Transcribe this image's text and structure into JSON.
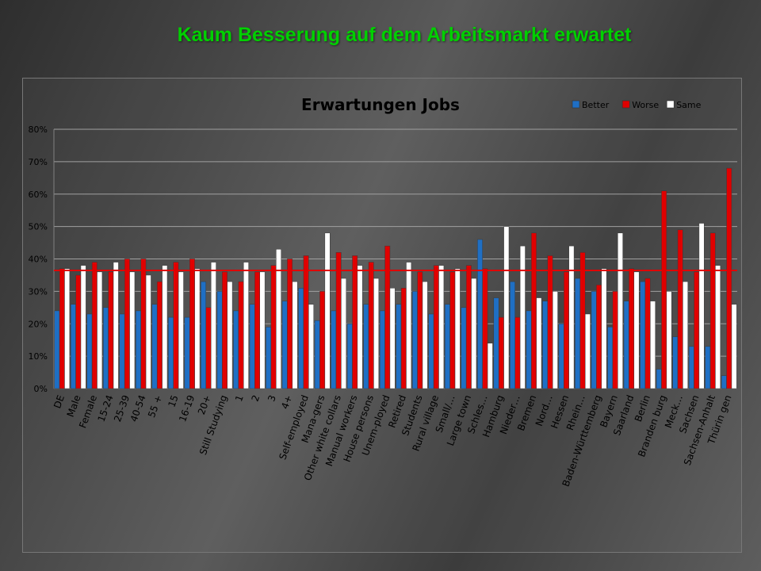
{
  "slide": {
    "title": "Kaum Besserung auf dem Arbeitsmarkt erwartet"
  },
  "colors": {
    "title": "#00d000",
    "better": "#1f6fc4",
    "worse": "#e00000",
    "same": "#ffffff",
    "reference_line": "#e00000"
  },
  "chart_data": {
    "type": "bar",
    "title": "Erwartungen Jobs",
    "xlabel": "",
    "ylabel": "",
    "ylim": [
      0,
      0.8
    ],
    "yticks": [
      "0%",
      "10%",
      "20%",
      "30%",
      "40%",
      "50%",
      "60%",
      "70%",
      "80%"
    ],
    "grid": true,
    "legend": "top-right",
    "reference_line": 0.365,
    "categories": [
      "DE",
      "Male",
      "Female",
      "15-24",
      "25-39",
      "40-54",
      "55 +",
      "15",
      "16-19",
      "20+",
      "Still Studying",
      "1",
      "2",
      "3",
      "4+",
      "Self-employed",
      "Mana-gers",
      "Other white collars",
      "Manual workers",
      "House persons",
      "Unem-ployed",
      "Retired",
      "Students",
      "Rural village",
      "Small/…",
      "Large town",
      "Schles…",
      "Hamburg",
      "Nieder…",
      "Bremen",
      "Nord…",
      "Hessen",
      "Rhein…",
      "Baden-Württemberg",
      "Bayern",
      "Saarland",
      "Berlin",
      "Branden burg",
      "Meck…",
      "Sachsen",
      "Sachsen-Anhalt",
      "Thürin gen"
    ],
    "series": [
      {
        "name": "Better",
        "values": [
          0.24,
          0.26,
          0.23,
          0.25,
          0.23,
          0.24,
          0.26,
          0.22,
          0.22,
          0.33,
          0.3,
          0.24,
          0.26,
          0.19,
          0.27,
          0.31,
          0.21,
          0.24,
          0.2,
          0.26,
          0.24,
          0.26,
          0.3,
          0.23,
          0.26,
          0.25,
          0.46,
          0.28,
          0.33,
          0.24,
          0.27,
          0.2,
          0.34,
          0.3,
          0.19,
          0.27,
          0.33,
          0.06,
          0.16,
          0.13,
          0.13,
          0.04
        ]
      },
      {
        "name": "Worse",
        "values": [
          0.37,
          0.35,
          0.39,
          0.36,
          0.4,
          0.4,
          0.33,
          0.39,
          0.4,
          0.25,
          0.36,
          0.33,
          0.36,
          0.38,
          0.4,
          0.41,
          0.3,
          0.42,
          0.41,
          0.39,
          0.44,
          0.31,
          0.36,
          0.38,
          0.36,
          0.38,
          0.37,
          0.22,
          0.22,
          0.48,
          0.41,
          0.36,
          0.42,
          0.32,
          0.3,
          0.37,
          0.34,
          0.61,
          0.49,
          0.36,
          0.48,
          0.68
        ]
      },
      {
        "name": "Same",
        "values": [
          0.37,
          0.38,
          0.36,
          0.39,
          0.36,
          0.35,
          0.38,
          0.36,
          0.37,
          0.39,
          0.33,
          0.39,
          0.36,
          0.43,
          0.33,
          0.26,
          0.48,
          0.34,
          0.38,
          0.34,
          0.31,
          0.39,
          0.33,
          0.38,
          0.37,
          0.34,
          0.14,
          0.5,
          0.44,
          0.28,
          0.3,
          0.44,
          0.23,
          0.37,
          0.48,
          0.36,
          0.27,
          0.3,
          0.33,
          0.51,
          0.38,
          0.26
        ]
      }
    ]
  }
}
